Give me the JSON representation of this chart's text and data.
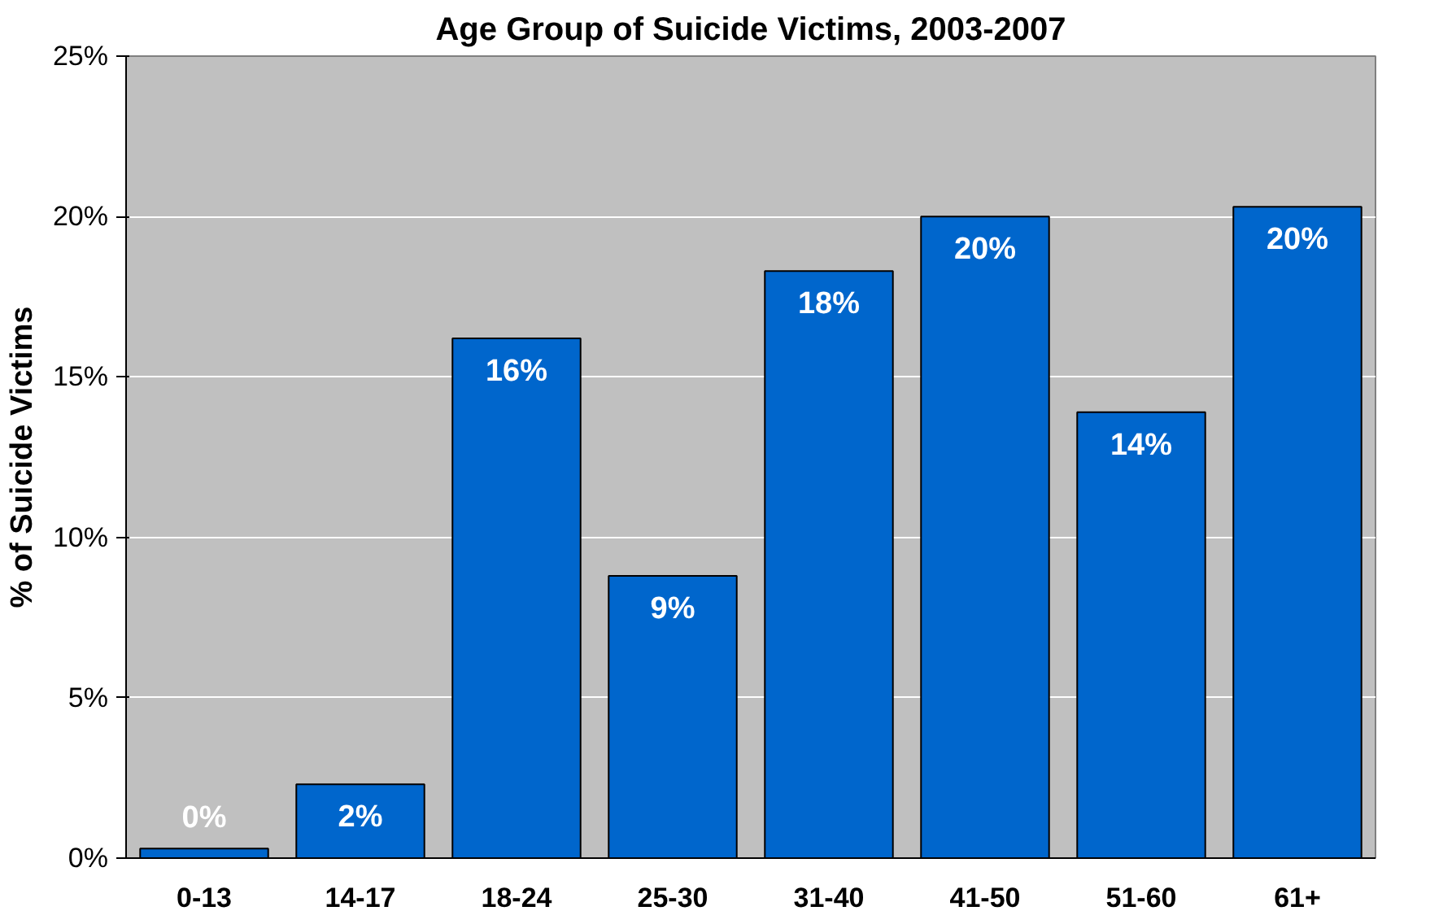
{
  "chart_data": {
    "type": "bar",
    "title": "Age Group of Suicide Victims, 2003-2007",
    "ylabel": "% of Suicide Victims",
    "categories": [
      "0-13",
      "14-17",
      "18-24",
      "25-30",
      "31-40",
      "41-50",
      "51-60",
      "61+"
    ],
    "values": [
      0.3,
      2.3,
      16.2,
      8.8,
      18.3,
      20.0,
      13.9,
      20.3
    ],
    "value_labels": [
      "0%",
      "2%",
      "16%",
      "9%",
      "18%",
      "20%",
      "14%",
      "20%"
    ],
    "color": "#0066cc",
    "ylim": [
      0,
      25
    ],
    "yticks": [
      {
        "value": 0,
        "label": "0%"
      },
      {
        "value": 5,
        "label": "5%"
      },
      {
        "value": 10,
        "label": "10%"
      },
      {
        "value": 15,
        "label": "15%"
      },
      {
        "value": 20,
        "label": "20%"
      },
      {
        "value": 25,
        "label": "25%"
      }
    ],
    "grid": "y"
  }
}
